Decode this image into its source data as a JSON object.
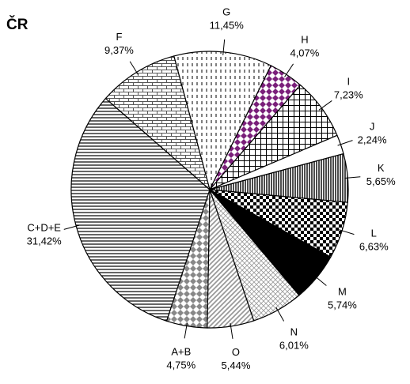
{
  "chart_data": {
    "type": "pie",
    "title": "ČR",
    "categories": [
      "G",
      "H",
      "I",
      "J",
      "K",
      "L",
      "M",
      "N",
      "O",
      "A+B",
      "C+D+E",
      "F"
    ],
    "values": [
      11.45,
      4.07,
      7.23,
      2.24,
      5.65,
      6.63,
      5.74,
      6.01,
      5.44,
      4.75,
      31.42,
      9.37
    ],
    "value_labels": [
      "11,45%",
      "4,07%",
      "7,23%",
      "2,24%",
      "5,65%",
      "6,63%",
      "5,74%",
      "6,01%",
      "5,44%",
      "4,75%",
      "31,42%",
      "9,37%"
    ]
  }
}
